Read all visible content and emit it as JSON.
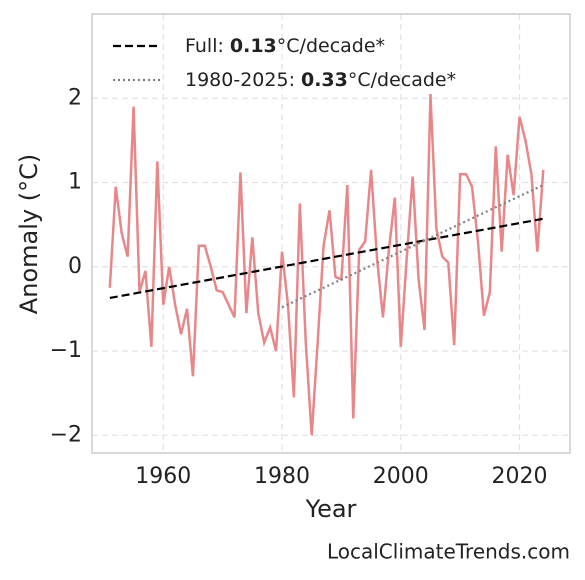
{
  "chart_data": {
    "type": "line",
    "xlabel": "Year",
    "ylabel": "Anomaly (°C)",
    "source": "LocalClimateTrends.com",
    "slope_unit": "°C/decade*",
    "xlim": [
      1948,
      2028.5
    ],
    "ylim": [
      -2.21,
      3.0
    ],
    "xticks": [
      1960,
      1980,
      2000,
      2020
    ],
    "yticks": [
      {
        "value": -2,
        "label": "−2"
      },
      {
        "value": -1,
        "label": "−1"
      },
      0,
      1,
      2
    ],
    "grid": true,
    "legend": "upper left",
    "series": [
      {
        "style": "solid",
        "color": "#e8878a",
        "x": [
          1951,
          1952,
          1953,
          1954,
          1955,
          1956,
          1957,
          1958,
          1959,
          1960,
          1961,
          1962,
          1963,
          1964,
          1965,
          1966,
          1967,
          1968,
          1969,
          1970,
          1971,
          1972,
          1973,
          1974,
          1975,
          1976,
          1977,
          1978,
          1979,
          1980,
          1981,
          1982,
          1983,
          1984,
          1985,
          1986,
          1987,
          1988,
          1989,
          1990,
          1991,
          1992,
          1993,
          1994,
          1995,
          1996,
          1997,
          1998,
          1999,
          2000,
          2001,
          2002,
          2003,
          2004,
          2005,
          2006,
          2007,
          2008,
          2009,
          2010,
          2011,
          2012,
          2013,
          2014,
          2015,
          2016,
          2017,
          2018,
          2019,
          2020,
          2021,
          2022,
          2023,
          2024
        ],
        "values": [
          -0.25,
          0.95,
          0.4,
          0.12,
          1.9,
          -0.3,
          -0.05,
          -0.95,
          1.25,
          -0.45,
          0.0,
          -0.45,
          -0.8,
          -0.5,
          -1.3,
          0.25,
          0.25,
          0.0,
          -0.28,
          -0.3,
          -0.45,
          -0.6,
          1.12,
          -0.55,
          0.35,
          -0.55,
          -0.9,
          -0.72,
          -1.0,
          0.18,
          -0.45,
          -1.55,
          0.75,
          -0.9,
          -2.0,
          -0.9,
          0.25,
          0.67,
          -0.12,
          -0.15,
          0.97,
          -1.8,
          0.2,
          0.3,
          1.15,
          0.1,
          -0.6,
          0.2,
          0.82,
          -0.95,
          0.1,
          1.07,
          -0.15,
          -0.75,
          2.05,
          0.45,
          0.12,
          0.05,
          -0.93,
          1.1,
          1.1,
          0.95,
          0.3,
          -0.58,
          -0.3,
          1.43,
          0.18,
          1.33,
          0.85,
          1.78,
          1.5,
          1.1,
          0.18,
          1.15
        ]
      },
      {
        "name": "Full:",
        "slope": 0.13,
        "style": "dashed",
        "color": "#000000",
        "x": [
          1951,
          2024
        ],
        "values": [
          -0.37,
          0.57
        ]
      },
      {
        "name": "1980-2025:",
        "slope": 0.33,
        "style": "dotted",
        "color": "#808080",
        "x": [
          1980,
          2024
        ],
        "values": [
          -0.48,
          0.97
        ]
      }
    ]
  }
}
